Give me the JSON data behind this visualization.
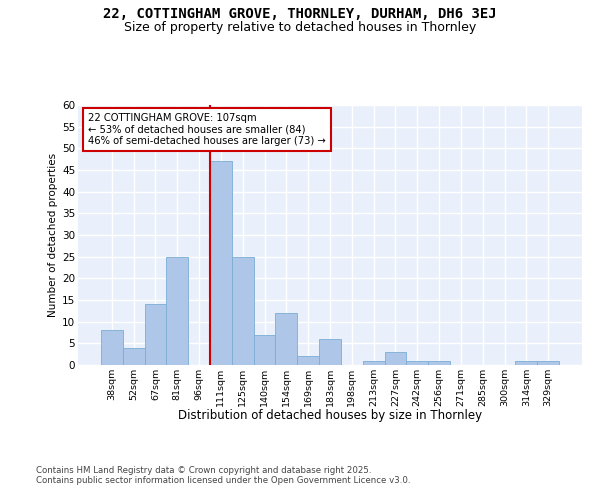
{
  "title1": "22, COTTINGHAM GROVE, THORNLEY, DURHAM, DH6 3EJ",
  "title2": "Size of property relative to detached houses in Thornley",
  "xlabel": "Distribution of detached houses by size in Thornley",
  "ylabel": "Number of detached properties",
  "bins": [
    "38sqm",
    "52sqm",
    "67sqm",
    "81sqm",
    "96sqm",
    "111sqm",
    "125sqm",
    "140sqm",
    "154sqm",
    "169sqm",
    "183sqm",
    "198sqm",
    "213sqm",
    "227sqm",
    "242sqm",
    "256sqm",
    "271sqm",
    "285sqm",
    "300sqm",
    "314sqm",
    "329sqm"
  ],
  "values": [
    8,
    4,
    14,
    25,
    0,
    47,
    25,
    7,
    12,
    2,
    6,
    0,
    1,
    3,
    1,
    1,
    0,
    0,
    0,
    1,
    1
  ],
  "bar_color": "#aec6e8",
  "bar_edge_color": "#7aadd4",
  "property_line_bin": 5,
  "annotation_text": "22 COTTINGHAM GROVE: 107sqm\n← 53% of detached houses are smaller (84)\n46% of semi-detached houses are larger (73) →",
  "annotation_box_color": "#ffffff",
  "annotation_box_edge": "#cc0000",
  "line_color": "#cc0000",
  "ylim": [
    0,
    60
  ],
  "yticks": [
    0,
    5,
    10,
    15,
    20,
    25,
    30,
    35,
    40,
    45,
    50,
    55,
    60
  ],
  "bg_color": "#eaf0fb",
  "grid_color": "#ffffff",
  "footer": "Contains HM Land Registry data © Crown copyright and database right 2025.\nContains public sector information licensed under the Open Government Licence v3.0.",
  "title_fontsize": 10,
  "subtitle_fontsize": 9
}
